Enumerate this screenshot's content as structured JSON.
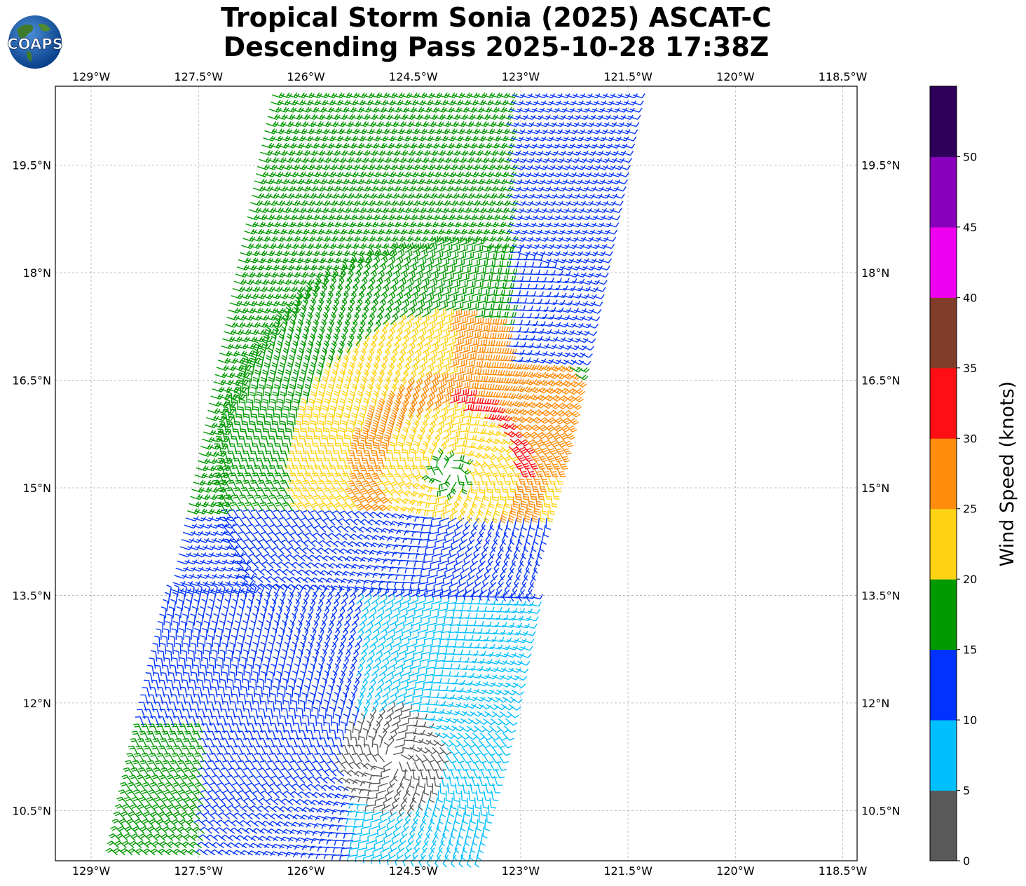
{
  "title": {
    "line1": "Tropical Storm Sonia (2025) ASCAT-C",
    "line2": "Descending Pass 2025-10-28 17:38Z"
  },
  "logo": {
    "text": "COAPS"
  },
  "map": {
    "lon_range": [
      -129.5,
      -118.3
    ],
    "lat_range": [
      9.8,
      20.6
    ],
    "lon_ticks": [
      {
        "value": -129.0,
        "label": "129°W"
      },
      {
        "value": -127.5,
        "label": "127.5°W"
      },
      {
        "value": -126.0,
        "label": "126°W"
      },
      {
        "value": -124.5,
        "label": "124.5°W"
      },
      {
        "value": -123.0,
        "label": "123°W"
      },
      {
        "value": -121.5,
        "label": "121.5°W"
      },
      {
        "value": -120.0,
        "label": "120°W"
      },
      {
        "value": -118.5,
        "label": "118.5°W"
      }
    ],
    "lat_ticks": [
      {
        "value": 10.5,
        "label": "10.5°N"
      },
      {
        "value": 12.0,
        "label": "12°N"
      },
      {
        "value": 13.5,
        "label": "13.5°N"
      },
      {
        "value": 15.0,
        "label": "15°N"
      },
      {
        "value": 16.5,
        "label": "16.5°N"
      },
      {
        "value": 18.0,
        "label": "18°N"
      },
      {
        "value": 19.5,
        "label": "19.5°N"
      }
    ],
    "gridlines": true,
    "swath": {
      "corners": [
        [
          -126.5,
          20.6
        ],
        [
          -121.3,
          20.6
        ],
        [
          -123.5,
          9.8
        ],
        [
          -128.7,
          9.8
        ]
      ],
      "spacing_deg": 0.1
    },
    "storm_center": [
      -124.0,
      15.2
    ],
    "calm_center": [
      -124.8,
      11.2
    ]
  },
  "chart_data": {
    "type": "wind-barbs",
    "title": "Tropical Storm Sonia (2025) ASCAT-C Descending Pass 2025-10-28 17:38Z",
    "variable": "Wind Speed (knots)",
    "xlim": [
      -129.5,
      -118.3
    ],
    "ylim": [
      9.8,
      20.6
    ],
    "storm_center_lon": -124.0,
    "storm_center_lat": 15.2,
    "max_wind_knots": 33,
    "speed_bins": [
      {
        "min": 0,
        "max": 5,
        "color": "#595959"
      },
      {
        "min": 5,
        "max": 10,
        "color": "#00bfff"
      },
      {
        "min": 10,
        "max": 15,
        "color": "#0033ff"
      },
      {
        "min": 15,
        "max": 20,
        "color": "#009900"
      },
      {
        "min": 20,
        "max": 25,
        "color": "#ffd314"
      },
      {
        "min": 25,
        "max": 30,
        "color": "#ff8c0a"
      },
      {
        "min": 30,
        "max": 35,
        "color": "#ff0f14"
      },
      {
        "min": 35,
        "max": 40,
        "color": "#803d2a"
      },
      {
        "min": 40,
        "max": 45,
        "color": "#f000f0"
      },
      {
        "min": 45,
        "max": 50,
        "color": "#8800bb"
      },
      {
        "min": 50,
        "max": 55,
        "color": "#2e0059"
      }
    ]
  },
  "colorbar": {
    "title": "Wind Speed (knots)",
    "ticks": [
      "0",
      "5",
      "10",
      "15",
      "20",
      "25",
      "30",
      "35",
      "40",
      "45",
      "50"
    ]
  }
}
